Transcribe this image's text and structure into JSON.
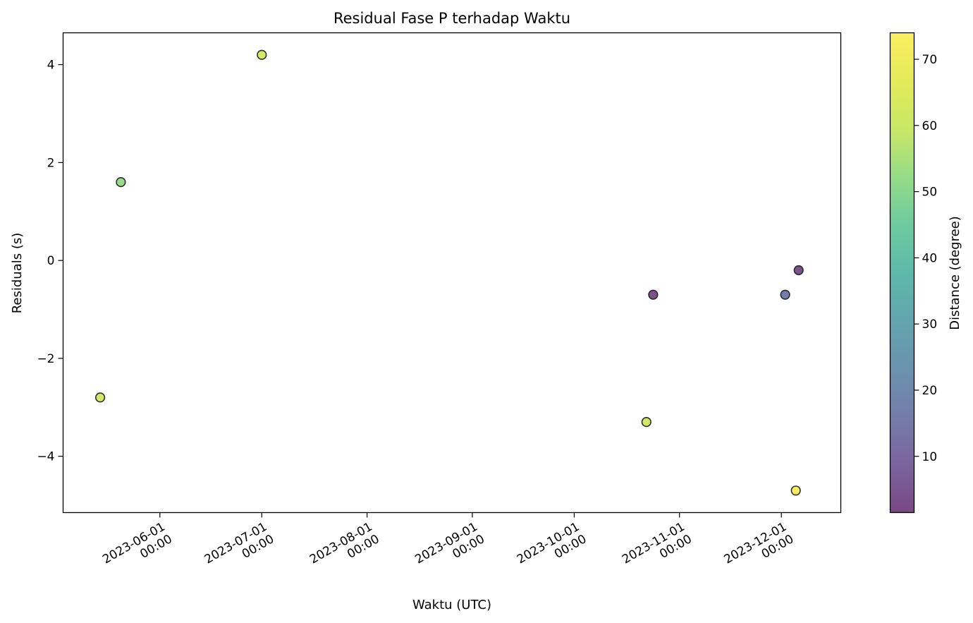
{
  "chart_data": {
    "type": "scatter",
    "title": "Residual Fase P terhadap Waktu",
    "xlabel": "Waktu (UTC)",
    "ylabel": "Residuals (s)",
    "xlim": [
      "2023-05-03T12:00",
      "2023-12-18T12:00"
    ],
    "ylim": [
      -5.15,
      4.65
    ],
    "x_ticks": [
      {
        "date": "2023-06-01",
        "line1": "2023-06-01",
        "line2": "00:00"
      },
      {
        "date": "2023-07-01",
        "line1": "2023-07-01",
        "line2": "00:00"
      },
      {
        "date": "2023-08-01",
        "line1": "2023-08-01",
        "line2": "00:00"
      },
      {
        "date": "2023-09-01",
        "line1": "2023-09-01",
        "line2": "00:00"
      },
      {
        "date": "2023-10-01",
        "line1": "2023-10-01",
        "line2": "00:00"
      },
      {
        "date": "2023-11-01",
        "line1": "2023-11-01",
        "line2": "00:00"
      },
      {
        "date": "2023-12-01",
        "line1": "2023-12-01",
        "line2": "00:00"
      }
    ],
    "y_ticks": [
      {
        "value": 4,
        "label": "4"
      },
      {
        "value": 2,
        "label": "2"
      },
      {
        "value": 0,
        "label": "0"
      },
      {
        "value": -2,
        "label": "−2"
      },
      {
        "value": -4,
        "label": "−4"
      }
    ],
    "points": [
      {
        "x": "2023-05-14T10:00",
        "y": -2.8,
        "distance": 61
      },
      {
        "x": "2023-05-20T12:00",
        "y": 1.6,
        "distance": 52
      },
      {
        "x": "2023-07-01T00:00",
        "y": 4.2,
        "distance": 63
      },
      {
        "x": "2023-10-22T06:00",
        "y": -3.3,
        "distance": 62
      },
      {
        "x": "2023-10-24T06:00",
        "y": -0.7,
        "distance": 3
      },
      {
        "x": "2023-12-02T03:00",
        "y": -0.7,
        "distance": 15
      },
      {
        "x": "2023-12-05T06:00",
        "y": -4.7,
        "distance": 73
      },
      {
        "x": "2023-12-06T02:00",
        "y": -0.2,
        "distance": 3
      }
    ],
    "colorbar": {
      "label": "Distance (degree)",
      "colormap": "viridis",
      "range": [
        1.5,
        74
      ],
      "ticks": [
        10,
        20,
        30,
        40,
        50,
        60,
        70
      ]
    },
    "grid": false,
    "legend": "none",
    "marker_alpha": 0.7,
    "edge_color": "#1a1a1a"
  }
}
